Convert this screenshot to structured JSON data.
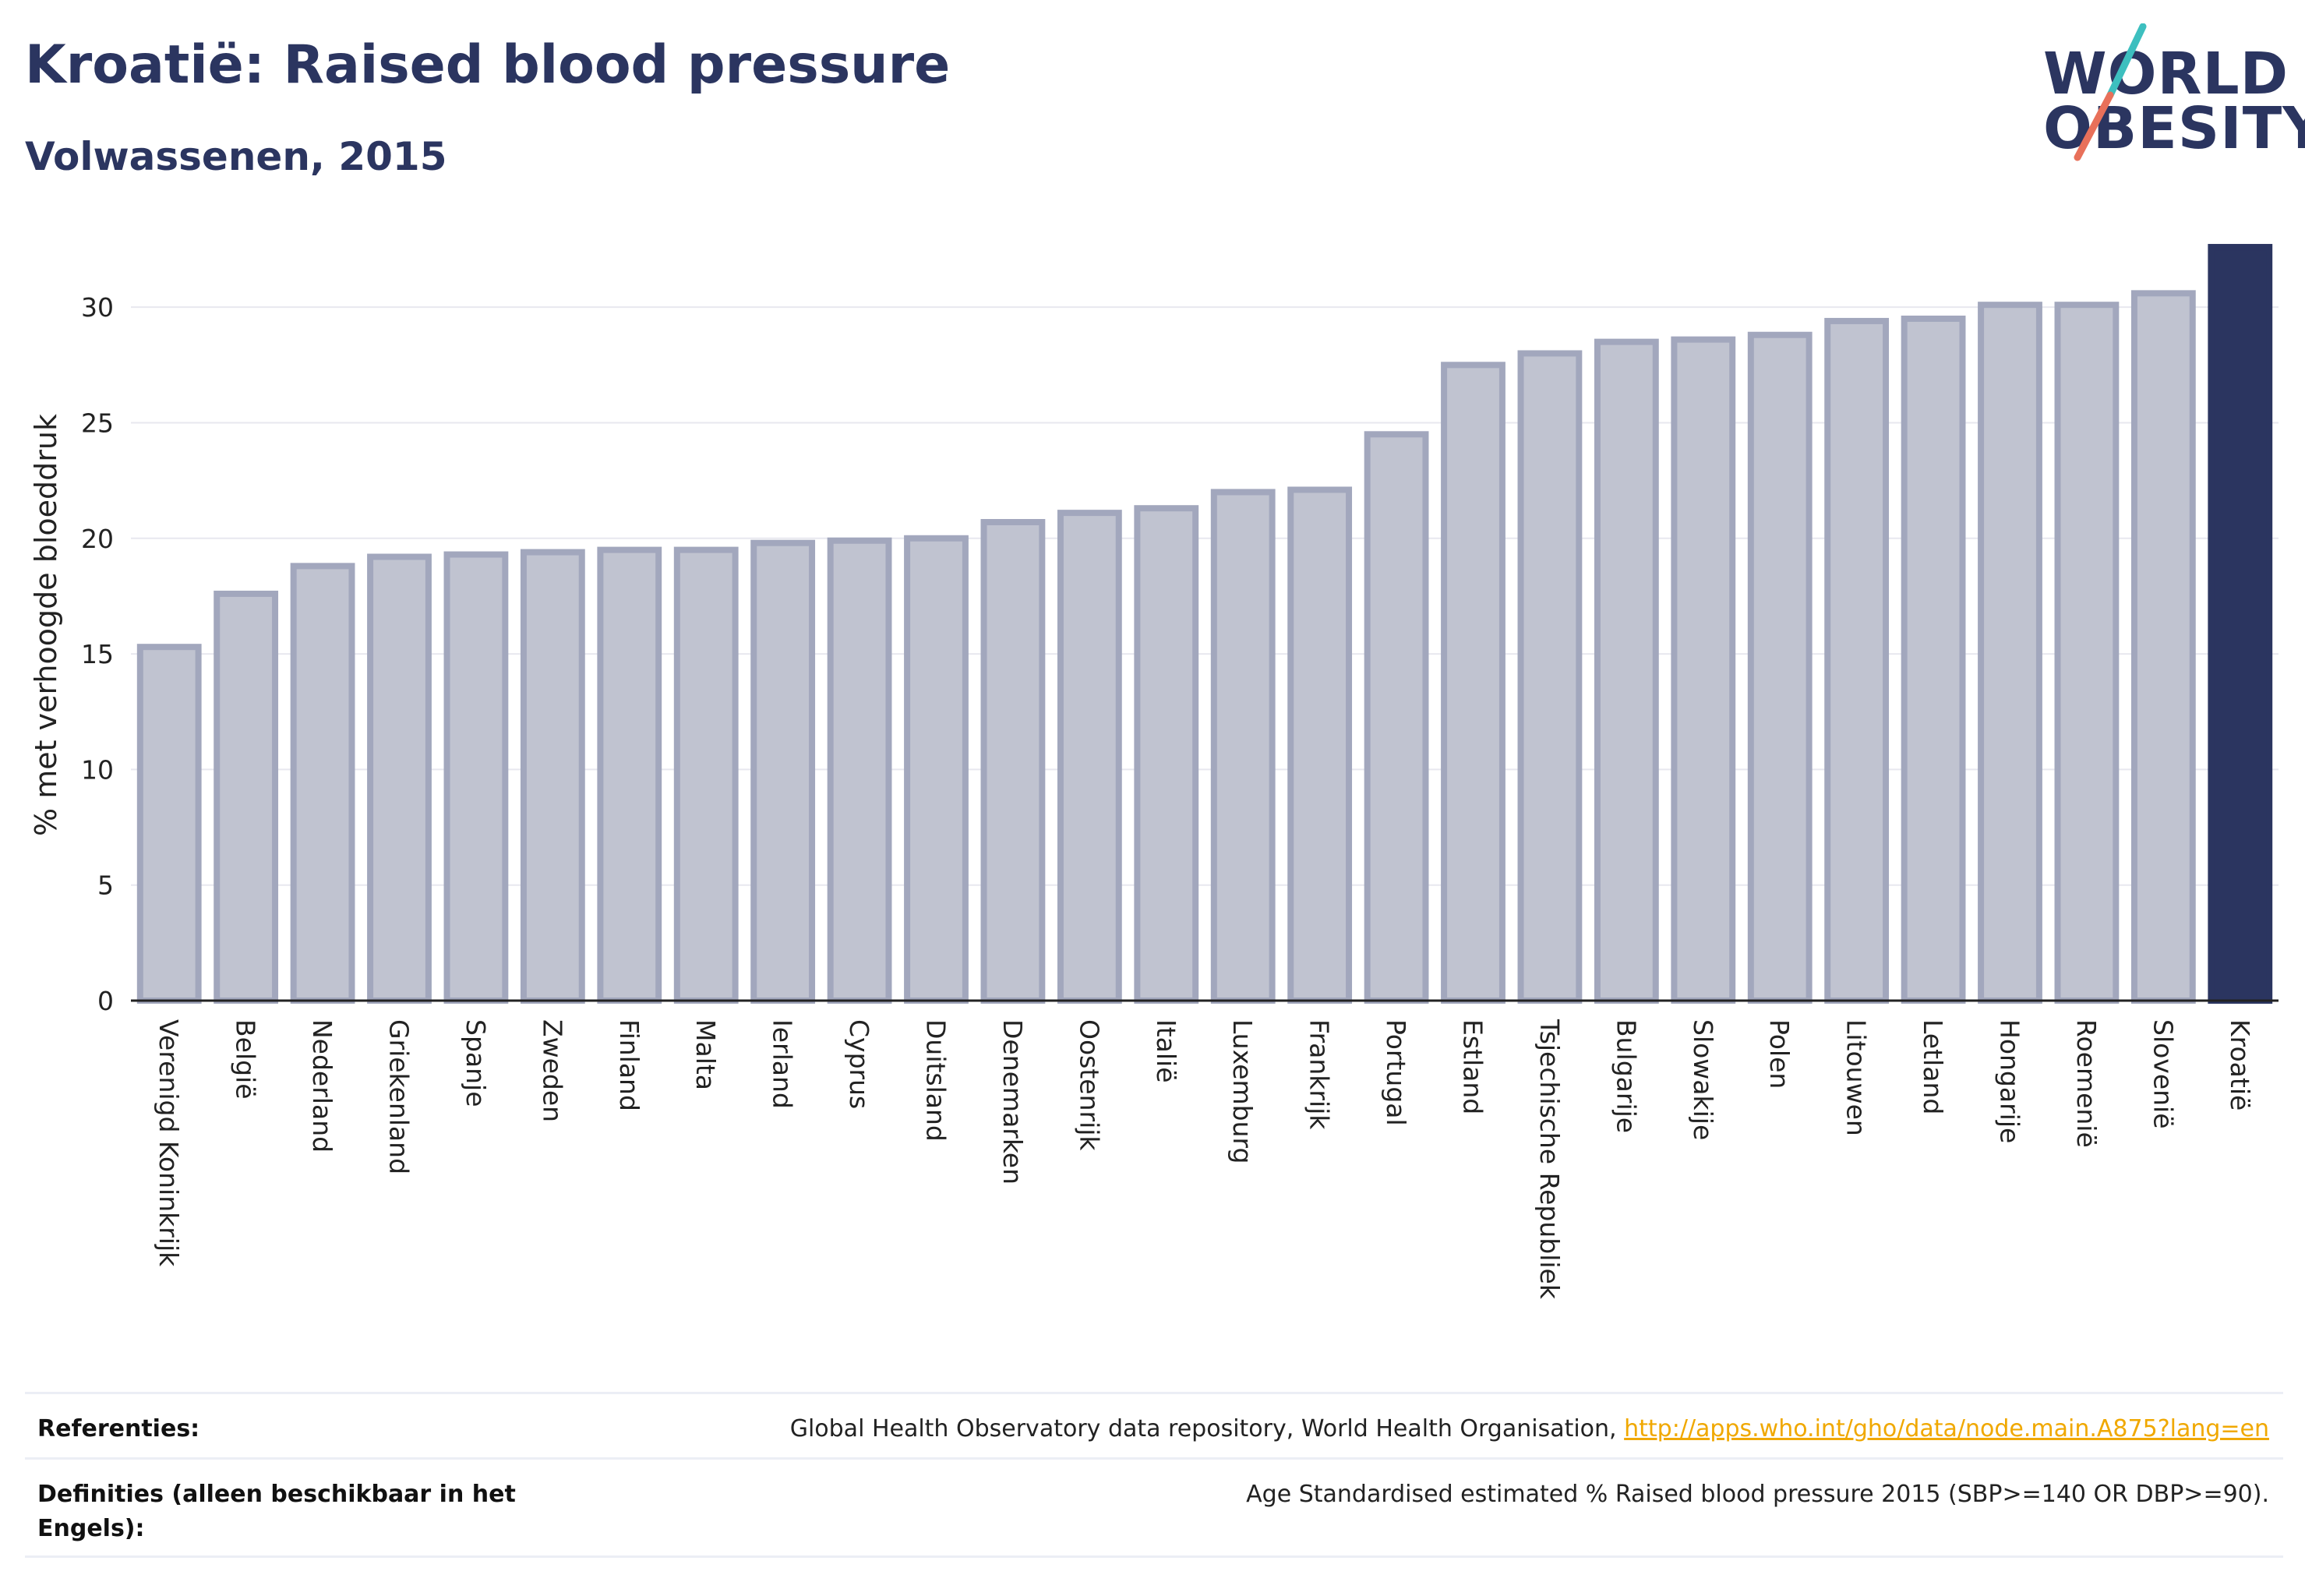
{
  "header": {
    "title": "Kroatië: Raised blood pressure",
    "subtitle": "Volwassenen, 2015"
  },
  "logo": {
    "line1": "WORLD",
    "line2": "OBESITY",
    "accent_teal": "#3dbfbf",
    "accent_coral": "#e8705a"
  },
  "colors": {
    "bar": "#c0c3d0",
    "bar_border": "#a2a7bd",
    "highlight": "#2b3560"
  },
  "chart_data": {
    "type": "bar",
    "ylabel": "% met verhoogde bloeddruk",
    "ylim": [
      0,
      32.5
    ],
    "yticks": [
      0,
      5,
      10,
      15,
      20,
      25,
      30
    ],
    "grid": true,
    "highlight": "Kroatië",
    "categories": [
      "Verenigd Koninkrijk",
      "België",
      "Nederland",
      "Griekenland",
      "Spanje",
      "Zweden",
      "Finland",
      "Malta",
      "Ierland",
      "Cyprus",
      "Duitsland",
      "Denemarken",
      "Oostenrijk",
      "Italië",
      "Luxemburg",
      "Frankrijk",
      "Portugal",
      "Estland",
      "Tsjechische Republiek",
      "Bulgarije",
      "Slowakije",
      "Polen",
      "Litouwen",
      "Letland",
      "Hongarije",
      "Roemenië",
      "Slovenië",
      "Kroatië"
    ],
    "values": [
      15.3,
      17.6,
      18.8,
      19.2,
      19.3,
      19.4,
      19.5,
      19.5,
      19.8,
      19.9,
      20.0,
      20.7,
      21.1,
      21.3,
      22.0,
      22.1,
      24.5,
      27.5,
      28.0,
      28.5,
      28.6,
      28.8,
      29.4,
      29.5,
      30.1,
      30.1,
      30.6,
      32.6
    ]
  },
  "footer": {
    "references_label": "Referenties:",
    "references_text": "Global Health Observatory data repository, World Health Organisation,",
    "references_link": "http://apps.who.int/gho/data/node.main.A875?lang=en",
    "definitions_label": "Definities (alleen beschikbaar in het Engels):",
    "definitions_text": "Age Standardised estimated % Raised blood pressure 2015 (SBP>=140 OR DBP>=90)."
  }
}
